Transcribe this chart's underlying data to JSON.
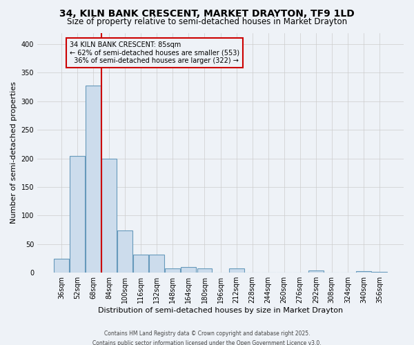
{
  "title": "34, KILN BANK CRESCENT, MARKET DRAYTON, TF9 1LD",
  "subtitle": "Size of property relative to semi-detached houses in Market Drayton",
  "xlabel": "Distribution of semi-detached houses by size in Market Drayton",
  "ylabel": "Number of semi-detached properties",
  "footer1": "Contains HM Land Registry data © Crown copyright and database right 2025.",
  "footer2": "Contains public sector information licensed under the Open Government Licence v3.0.",
  "bin_labels": [
    "36sqm",
    "52sqm",
    "68sqm",
    "84sqm",
    "100sqm",
    "116sqm",
    "132sqm",
    "148sqm",
    "164sqm",
    "180sqm",
    "196sqm",
    "212sqm",
    "228sqm",
    "244sqm",
    "260sqm",
    "276sqm",
    "292sqm",
    "308sqm",
    "324sqm",
    "340sqm",
    "356sqm"
  ],
  "bar_heights": [
    25,
    204,
    328,
    200,
    74,
    32,
    32,
    8,
    10,
    8,
    0,
    8,
    0,
    0,
    0,
    0,
    4,
    0,
    0,
    3,
    2
  ],
  "bar_color": "#ccdcec",
  "bar_edge_color": "#6699bb",
  "vline_color": "#cc0000",
  "annotation_box_color": "#cc0000",
  "ylim": [
    0,
    420
  ],
  "yticks": [
    0,
    50,
    100,
    150,
    200,
    250,
    300,
    350,
    400
  ],
  "bg_color": "#eef2f7",
  "grid_color": "#cccccc",
  "property_label": "34 KILN BANK CRESCENT: 85sqm",
  "pct_smaller": 62,
  "pct_larger": 36,
  "n_smaller": 553,
  "n_larger": 322,
  "vline_bin_index": 3,
  "title_fontsize": 10,
  "subtitle_fontsize": 8.5,
  "axis_label_fontsize": 8,
  "tick_fontsize": 7,
  "annot_fontsize": 7
}
